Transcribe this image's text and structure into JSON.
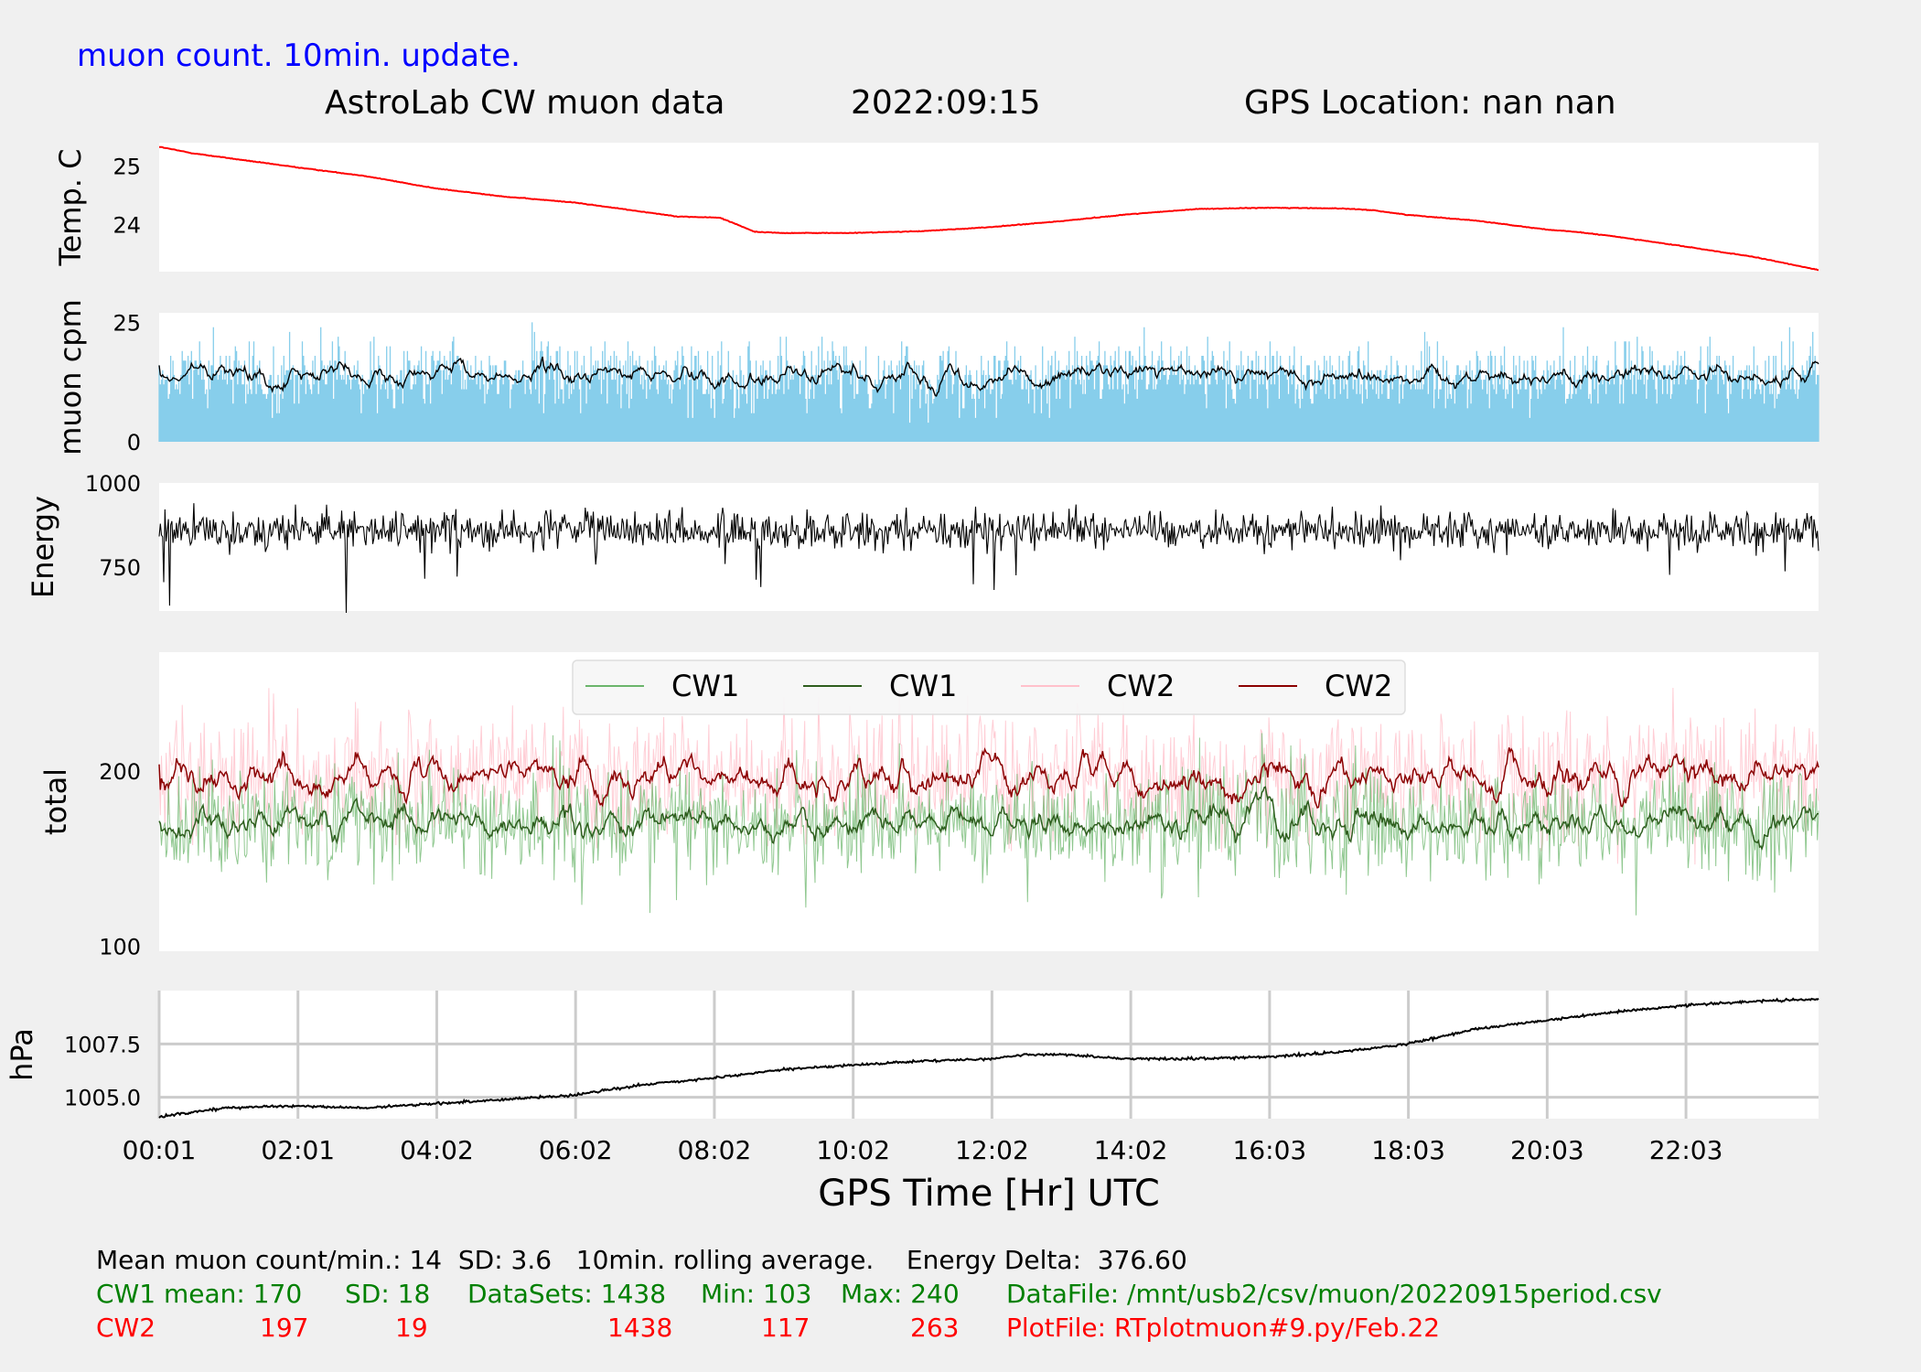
{
  "header": {
    "subtitle": "muon count.  10min. update.",
    "title_left": "AstroLab CW muon data",
    "title_date": "2022:09:15",
    "title_gps": "GPS Location: nan   nan"
  },
  "colors": {
    "background": "#f0f0f0",
    "panel": "#ffffff",
    "temp": "#ff0000",
    "muon_bars": "#87ceeb",
    "black": "#000000",
    "cw1_raw": "#6bb56b",
    "cw1_avg": "#2e5e1e",
    "cw2_raw": "#ffc0cb",
    "cw2_avg": "#8b0000",
    "green_text": "#008000",
    "red_text": "#ff0000",
    "blue_text": "#0000ff",
    "grid": "#cccccc"
  },
  "chart_data": {
    "type": "line",
    "x_axis": {
      "label": "GPS Time  [Hr] UTC",
      "ticks": [
        "00:01",
        "02:01",
        "04:02",
        "06:02",
        "08:02",
        "10:02",
        "12:02",
        "14:02",
        "16:03",
        "18:03",
        "20:03",
        "22:03"
      ],
      "range_hours": [
        0.02,
        23.93
      ]
    },
    "panels": [
      {
        "id": "temp",
        "ylabel": "Temp. C",
        "ylim": [
          23.2,
          25.4
        ],
        "yticks": [
          "24",
          "25"
        ],
        "ytick_values": [
          24,
          25
        ],
        "series": [
          {
            "color": "#ff0000",
            "points": [
              [
                0.02,
                25.33
              ],
              [
                0.5,
                25.22
              ],
              [
                1,
                25.14
              ],
              [
                2,
                24.98
              ],
              [
                3,
                24.83
              ],
              [
                4,
                24.62
              ],
              [
                5,
                24.48
              ],
              [
                6,
                24.38
              ],
              [
                7,
                24.22
              ],
              [
                7.5,
                24.14
              ],
              [
                8.1,
                24.12
              ],
              [
                8.4,
                23.98
              ],
              [
                8.6,
                23.88
              ],
              [
                9,
                23.86
              ],
              [
                10,
                23.86
              ],
              [
                11,
                23.89
              ],
              [
                12,
                23.96
              ],
              [
                13,
                24.06
              ],
              [
                14,
                24.18
              ],
              [
                15,
                24.27
              ],
              [
                16,
                24.29
              ],
              [
                17,
                24.28
              ],
              [
                17.5,
                24.25
              ],
              [
                18,
                24.17
              ],
              [
                19,
                24.07
              ],
              [
                20,
                23.92
              ],
              [
                20.5,
                23.87
              ],
              [
                21,
                23.8
              ],
              [
                22,
                23.63
              ],
              [
                23,
                23.45
              ],
              [
                23.93,
                23.23
              ]
            ]
          }
        ]
      },
      {
        "id": "muon",
        "ylabel": "muon cpm",
        "ylim": [
          0,
          27
        ],
        "yticks": [
          "0",
          "25"
        ],
        "ytick_values": [
          0,
          25
        ],
        "bars": {
          "color": "#87ceeb",
          "mean": 14,
          "sd": 3.6,
          "count": 1438
        },
        "rolling_average": {
          "color": "#000000",
          "window_min": 10,
          "mean": 14
        }
      },
      {
        "id": "energy",
        "ylabel": "Energy",
        "ylim": [
          620,
          1000
        ],
        "yticks": [
          "750",
          "1000"
        ],
        "ytick_values": [
          750,
          1000
        ],
        "series": [
          {
            "color": "#000000",
            "mean": 860,
            "delta": 376.6
          }
        ]
      },
      {
        "id": "total",
        "ylabel": "total",
        "ylim": [
          97,
          268
        ],
        "yticks": [
          "100",
          "200"
        ],
        "ytick_values": [
          100,
          200
        ],
        "legend": {
          "position": "top-center",
          "entries": [
            {
              "label": "CW1",
              "color": "#6bb56b"
            },
            {
              "label": "CW1",
              "color": "#2e5e1e"
            },
            {
              "label": "CW2",
              "color": "#ffc0cb"
            },
            {
              "label": "CW2",
              "color": "#8b0000"
            }
          ]
        },
        "series": [
          {
            "name": "CW1",
            "kind": "raw",
            "mean": 170,
            "sd": 18,
            "min": 103,
            "max": 240,
            "color": "#6bb56b"
          },
          {
            "name": "CW1",
            "kind": "rolling",
            "mean": 170,
            "color": "#2e5e1e"
          },
          {
            "name": "CW2",
            "kind": "raw",
            "mean": 197,
            "sd": 19,
            "min": 117,
            "max": 263,
            "color": "#ffc0cb"
          },
          {
            "name": "CW2",
            "kind": "rolling",
            "mean": 197,
            "color": "#8b0000"
          }
        ]
      },
      {
        "id": "pressure",
        "ylabel": "hPa",
        "ylim": [
          1004.0,
          1010.0
        ],
        "yticks": [
          "1005.0",
          "1007.5"
        ],
        "ytick_values": [
          1005.0,
          1007.5
        ],
        "grid": true,
        "series": [
          {
            "color": "#000000",
            "points": [
              [
                0.02,
                1004.1
              ],
              [
                1,
                1004.5
              ],
              [
                2,
                1004.6
              ],
              [
                3,
                1004.5
              ],
              [
                4,
                1004.7
              ],
              [
                5,
                1004.9
              ],
              [
                6,
                1005.1
              ],
              [
                7,
                1005.6
              ],
              [
                8,
                1005.9
              ],
              [
                9,
                1006.3
              ],
              [
                10,
                1006.5
              ],
              [
                11,
                1006.7
              ],
              [
                12,
                1006.8
              ],
              [
                12.5,
                1007.0
              ],
              [
                13,
                1007.0
              ],
              [
                14,
                1006.8
              ],
              [
                15,
                1006.8
              ],
              [
                16,
                1006.9
              ],
              [
                17,
                1007.1
              ],
              [
                18,
                1007.5
              ],
              [
                19,
                1008.2
              ],
              [
                20,
                1008.6
              ],
              [
                21,
                1009.0
              ],
              [
                22,
                1009.3
              ],
              [
                23,
                1009.5
              ],
              [
                23.93,
                1009.6
              ]
            ]
          }
        ]
      }
    ]
  },
  "stats": {
    "line1": "Mean muon count/min.: 14  SD: 3.6   10min. rolling average.    Energy Delta:  376.60",
    "cw1_label": "CW1 mean: 170",
    "cw1_sd": "SD: 18",
    "cw1_datasets": "DataSets: 1438",
    "cw1_min": "Min: 103",
    "cw1_max": "Max: 240",
    "datafile": "DataFile: /mnt/usb2/csv/muon/20220915period.csv",
    "cw2_label": "CW2",
    "cw2_mean": "197",
    "cw2_sd": "19",
    "cw2_datasets": "1438",
    "cw2_min": "117",
    "cw2_max": "263",
    "plotfile": "PlotFile: RTplotmuon#9.py/Feb.22"
  }
}
